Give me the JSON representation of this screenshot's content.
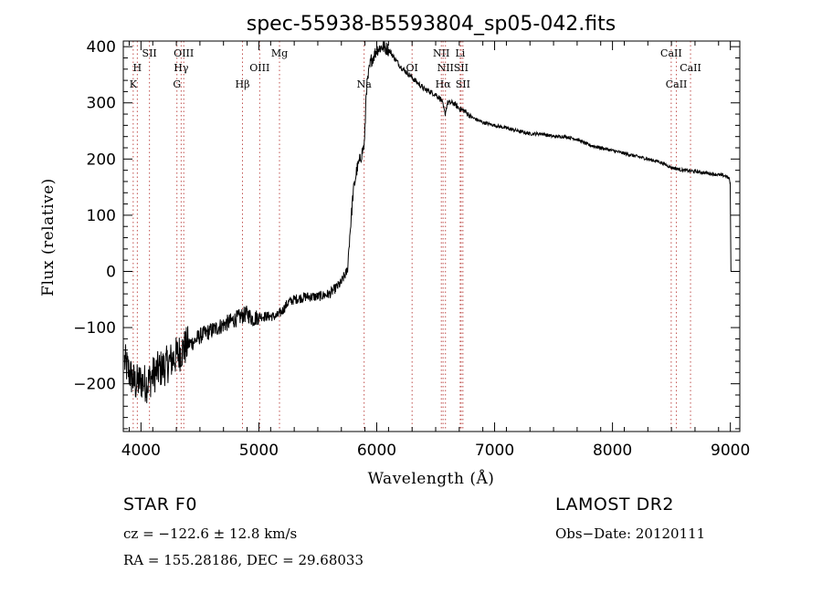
{
  "chart_data": {
    "type": "line",
    "title": "spec-55938-B5593804_sp05-042.fits",
    "xlabel": "Wavelength (Å)",
    "ylabel": "Flux (relative)",
    "xlim": [
      3850,
      9080
    ],
    "ylim": [
      -285,
      410
    ],
    "xticks": [
      4000,
      5000,
      6000,
      7000,
      8000,
      9000
    ],
    "yticks": [
      -200,
      -100,
      0,
      100,
      200,
      300,
      400
    ],
    "grid": false,
    "series": [
      {
        "color": "#000000",
        "anchors": [
          [
            3860,
            -160
          ],
          [
            3900,
            -180
          ],
          [
            3950,
            -200
          ],
          [
            4000,
            -195
          ],
          [
            4050,
            -200
          ],
          [
            4100,
            -185
          ],
          [
            4150,
            -175
          ],
          [
            4200,
            -170
          ],
          [
            4250,
            -160
          ],
          [
            4300,
            -150
          ],
          [
            4350,
            -140
          ],
          [
            4400,
            -130
          ],
          [
            4450,
            -125
          ],
          [
            4500,
            -115
          ],
          [
            4550,
            -110
          ],
          [
            4600,
            -105
          ],
          [
            4650,
            -100
          ],
          [
            4700,
            -95
          ],
          [
            4750,
            -90
          ],
          [
            4800,
            -85
          ],
          [
            4850,
            -80
          ],
          [
            4900,
            -75
          ],
          [
            4950,
            -85
          ],
          [
            5000,
            -80
          ],
          [
            5050,
            -80
          ],
          [
            5100,
            -80
          ],
          [
            5150,
            -80
          ],
          [
            5200,
            -70
          ],
          [
            5250,
            -55
          ],
          [
            5300,
            -50
          ],
          [
            5400,
            -45
          ],
          [
            5500,
            -45
          ],
          [
            5600,
            -40
          ],
          [
            5650,
            -30
          ],
          [
            5700,
            -20
          ],
          [
            5720,
            -10
          ],
          [
            5750,
            0
          ],
          [
            5770,
            60
          ],
          [
            5800,
            140
          ],
          [
            5830,
            180
          ],
          [
            5860,
            200
          ],
          [
            5880,
            215
          ],
          [
            5895,
            225
          ],
          [
            5900,
            250
          ],
          [
            5910,
            320
          ],
          [
            5930,
            350
          ],
          [
            5950,
            375
          ],
          [
            5980,
            385
          ],
          [
            6000,
            395
          ],
          [
            6050,
            400
          ],
          [
            6100,
            395
          ],
          [
            6150,
            380
          ],
          [
            6200,
            365
          ],
          [
            6250,
            355
          ],
          [
            6300,
            345
          ],
          [
            6350,
            335
          ],
          [
            6400,
            325
          ],
          [
            6450,
            320
          ],
          [
            6500,
            315
          ],
          [
            6550,
            305
          ],
          [
            6580,
            280
          ],
          [
            6600,
            300
          ],
          [
            6650,
            300
          ],
          [
            6700,
            290
          ],
          [
            6750,
            285
          ],
          [
            6800,
            275
          ],
          [
            6900,
            265
          ],
          [
            7000,
            260
          ],
          [
            7100,
            255
          ],
          [
            7200,
            250
          ],
          [
            7300,
            245
          ],
          [
            7400,
            245
          ],
          [
            7500,
            240
          ],
          [
            7600,
            240
          ],
          [
            7700,
            235
          ],
          [
            7800,
            225
          ],
          [
            7900,
            220
          ],
          [
            8000,
            215
          ],
          [
            8100,
            210
          ],
          [
            8200,
            205
          ],
          [
            8300,
            200
          ],
          [
            8400,
            195
          ],
          [
            8500,
            185
          ],
          [
            8600,
            180
          ],
          [
            8700,
            178
          ],
          [
            8800,
            175
          ],
          [
            8900,
            172
          ],
          [
            8960,
            170
          ],
          [
            8990,
            165
          ],
          [
            9000,
            155
          ],
          [
            9005,
            0
          ]
        ]
      }
    ],
    "spectral_lines": [
      {
        "label": "K",
        "wavelength": 3934,
        "row": 3
      },
      {
        "label": "H",
        "wavelength": 3969,
        "row": 2
      },
      {
        "label": "SII",
        "wavelength": 4072,
        "row": 1
      },
      {
        "label": "G",
        "wavelength": 4305,
        "row": 3
      },
      {
        "label": "Hγ",
        "wavelength": 4341,
        "row": 2
      },
      {
        "label": "OIII",
        "wavelength": 4363,
        "row": 1
      },
      {
        "label": "Hβ",
        "wavelength": 4861,
        "row": 3
      },
      {
        "label": "OIII",
        "wavelength": 5007,
        "row": 2
      },
      {
        "label": "Mg",
        "wavelength": 5175,
        "row": 1
      },
      {
        "label": "Na",
        "wavelength": 5893,
        "row": 3
      },
      {
        "label": "OI",
        "wavelength": 6300,
        "row": 2
      },
      {
        "label": "NII",
        "wavelength": 6548,
        "row": 1
      },
      {
        "label": "Hα",
        "wavelength": 6563,
        "row": 3
      },
      {
        "label": "NII",
        "wavelength": 6583,
        "row": 2
      },
      {
        "label": "Li",
        "wavelength": 6708,
        "row": 1
      },
      {
        "label": "SII",
        "wavelength": 6716,
        "row": 2
      },
      {
        "label": "SII",
        "wavelength": 6731,
        "row": 3
      },
      {
        "label": "CaII",
        "wavelength": 8498,
        "row": 1
      },
      {
        "label": "CaII",
        "wavelength": 8542,
        "row": 3
      },
      {
        "label": "CaII",
        "wavelength": 8662,
        "row": 2
      }
    ],
    "line_marker_color": "#c0504d"
  },
  "info": {
    "class": "STAR    F0",
    "survey": "LAMOST DR2",
    "cz": "cz = −122.6 ± 12.8 km/s",
    "obs_date": "Obs−Date: 20120111",
    "coords": "RA = 155.28186, DEC =  29.68033"
  }
}
